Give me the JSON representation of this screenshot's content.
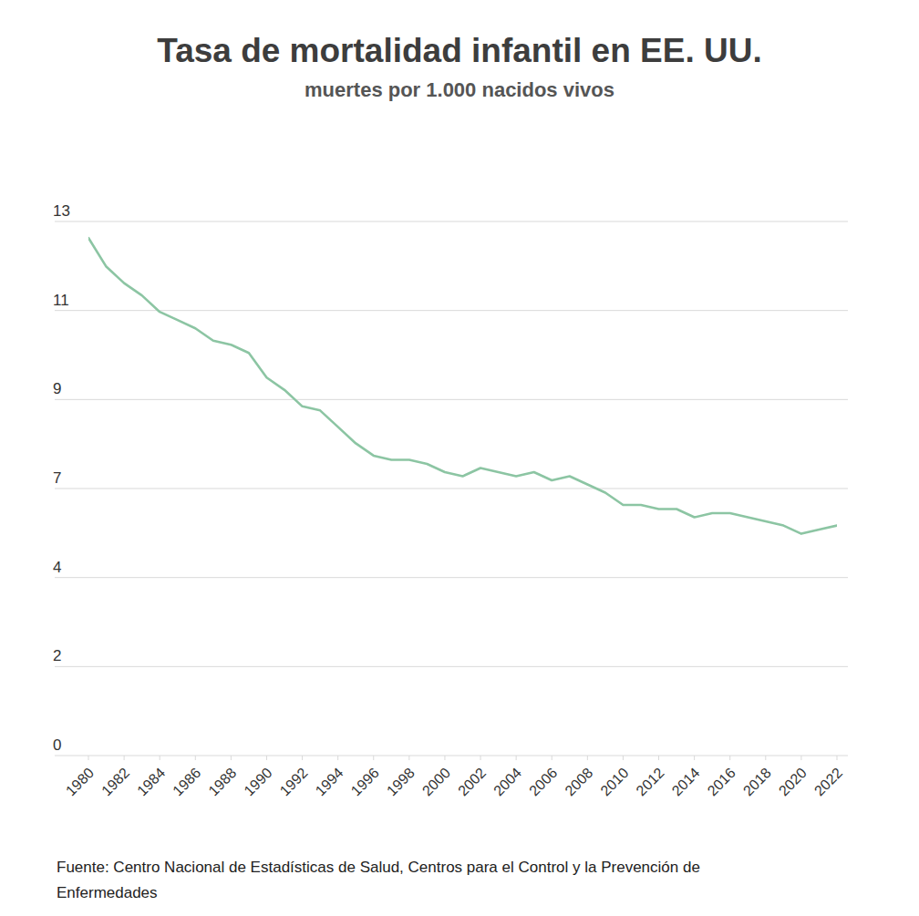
{
  "chart_data": {
    "type": "line",
    "title": "Tasa de mortalidad infantil en EE. UU.",
    "subtitle": "muertes por 1.000 nacidos vivos",
    "source": "Fuente: Centro Nacional de Estadísticas de Salud, Centros para el Control y la Prevención de Enfermedades",
    "x": [
      1980,
      1981,
      1982,
      1983,
      1984,
      1985,
      1986,
      1987,
      1988,
      1989,
      1990,
      1991,
      1992,
      1993,
      1994,
      1995,
      1996,
      1997,
      1998,
      1999,
      2000,
      2001,
      2002,
      2003,
      2004,
      2005,
      2006,
      2007,
      2008,
      2009,
      2010,
      2011,
      2012,
      2013,
      2014,
      2015,
      2016,
      2017,
      2018,
      2019,
      2020,
      2021,
      2022
    ],
    "values": [
      12.6,
      11.9,
      11.5,
      11.2,
      10.8,
      10.6,
      10.4,
      10.1,
      10.0,
      9.8,
      9.2,
      8.9,
      8.5,
      8.4,
      8.0,
      7.6,
      7.3,
      7.2,
      7.2,
      7.1,
      6.9,
      6.8,
      7.0,
      6.9,
      6.8,
      6.9,
      6.7,
      6.8,
      6.6,
      6.4,
      6.1,
      6.1,
      6.0,
      6.0,
      5.8,
      5.9,
      5.9,
      5.8,
      5.7,
      5.6,
      5.4,
      5.5,
      5.6
    ],
    "color": "#8cc5a3",
    "xlim": [
      1980,
      2022
    ],
    "xticks": [
      1980,
      1982,
      1984,
      1986,
      1988,
      1990,
      1992,
      1994,
      1996,
      1998,
      2000,
      2002,
      2004,
      2006,
      2008,
      2010,
      2012,
      2014,
      2016,
      2018,
      2020,
      2022
    ],
    "ylim": [
      0,
      13
    ],
    "yticks": [
      0,
      {
        "value": 2.1667,
        "label": "2"
      },
      {
        "value": 4.3333,
        "label": "4"
      },
      {
        "value": 6.5,
        "label": "7"
      },
      {
        "value": 8.6667,
        "label": "9"
      },
      {
        "value": 10.8333,
        "label": "11"
      },
      13
    ],
    "grid": true
  }
}
